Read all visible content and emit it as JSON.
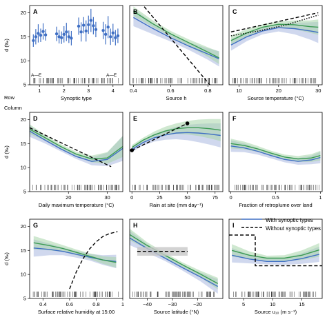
{
  "figure": {
    "ylabel": "d (‰)",
    "legend": {
      "entries": [
        {
          "label": "With synoptic types",
          "color": "#3f6fc4",
          "style": "solid"
        },
        {
          "label": "Without synoptic types",
          "color": "#000000",
          "style": "dashed"
        }
      ]
    },
    "colors": {
      "green": "#3a9a52",
      "blue": "#3f6fc4",
      "green_band": "#a7d6a9",
      "blue_band": "#aab8e0",
      "black": "#000000"
    }
  },
  "chart_data": [
    {
      "panel": "A",
      "type": "scatter",
      "xlabel": "Synoptic type",
      "xlim": [
        0.6,
        4.4
      ],
      "ylim": [
        5,
        21.5
      ],
      "xticks": [
        1,
        2,
        3,
        4
      ],
      "yticks": [
        5,
        10,
        15,
        20
      ],
      "row_label": "Row",
      "column_label": "Column",
      "annot_left": "A—E",
      "annot_right": "A—E",
      "groups": [
        {
          "type": 1,
          "points": [
            [
              0.75,
              14.2,
              1.3
            ],
            [
              0.85,
              15.0,
              1.6
            ],
            [
              0.95,
              15.7,
              1.9
            ],
            [
              1.05,
              15.3,
              1.4
            ],
            [
              1.15,
              16.1,
              1.7
            ],
            [
              1.25,
              15.4,
              1.2
            ]
          ]
        },
        {
          "type": 2,
          "points": [
            [
              1.7,
              15.6,
              1.5
            ],
            [
              1.8,
              15.0,
              1.4
            ],
            [
              1.9,
              14.8,
              1.3
            ],
            [
              2.0,
              15.5,
              1.7
            ],
            [
              2.1,
              16.0,
              1.9
            ],
            [
              2.2,
              15.0,
              1.3
            ],
            [
              2.3,
              14.7,
              1.5
            ]
          ]
        },
        {
          "type": 3,
          "points": [
            [
              2.6,
              17.2,
              1.8
            ],
            [
              2.7,
              16.0,
              2.0
            ],
            [
              2.8,
              17.4,
              1.7
            ],
            [
              2.9,
              16.2,
              2.2
            ],
            [
              3.0,
              17.5,
              1.9
            ],
            [
              3.1,
              18.4,
              2.4
            ],
            [
              3.2,
              17.3,
              1.8
            ],
            [
              3.3,
              16.5,
              1.6
            ]
          ]
        },
        {
          "type": 4,
          "points": [
            [
              3.6,
              16.3,
              1.8
            ],
            [
              3.7,
              15.5,
              2.1
            ],
            [
              3.8,
              17.0,
              2.3
            ],
            [
              3.9,
              15.0,
              1.7
            ],
            [
              4.0,
              15.8,
              1.9
            ],
            [
              4.1,
              14.8,
              1.6
            ],
            [
              4.2,
              15.2,
              1.5
            ]
          ]
        }
      ]
    },
    {
      "panel": "B",
      "type": "line",
      "xlabel": "Source h",
      "xlim": [
        0.38,
        0.88
      ],
      "ylim": [
        5,
        21.5
      ],
      "xticks": [
        0.4,
        0.6,
        0.8
      ],
      "x": [
        0.4,
        0.5,
        0.6,
        0.7,
        0.8,
        0.86
      ],
      "series": [
        {
          "name": "With synoptic types",
          "y": [
            19.0,
            16.8,
            14.8,
            13.0,
            11.4,
            10.4
          ],
          "band": [
            1.8,
            1.2,
            0.8,
            0.8,
            1.2,
            1.6
          ]
        },
        {
          "name": "Without synoptic types",
          "y": [
            20.3,
            17.8,
            15.6,
            13.7,
            11.8,
            10.6
          ],
          "band": [
            1.0,
            0.7,
            0.6,
            0.7,
            1.0,
            1.3
          ]
        },
        {
          "name": "Without synoptic types",
          "dashed": true,
          "x": [
            0.42,
            0.81
          ],
          "y": [
            23,
            5
          ]
        }
      ]
    },
    {
      "panel": "C",
      "type": "line",
      "xlabel": "Source temperature (°C)",
      "xlim": [
        7.5,
        31
      ],
      "ylim": [
        5,
        21.5
      ],
      "xticks": [
        10,
        20,
        30
      ],
      "x": [
        8,
        12,
        16,
        20,
        24,
        28,
        30
      ],
      "series": [
        {
          "name": "With synoptic types",
          "y": [
            13.3,
            15.0,
            16.2,
            16.9,
            16.7,
            16.2,
            15.9
          ],
          "band": [
            1.2,
            0.9,
            0.7,
            0.8,
            1.2,
            1.8,
            2.2
          ]
        },
        {
          "name": "Without synoptic types",
          "y": [
            14.2,
            15.8,
            17.0,
            17.6,
            17.5,
            17.1,
            17.0
          ],
          "band": [
            1.0,
            0.8,
            0.6,
            0.6,
            0.9,
            1.3,
            1.6
          ]
        },
        {
          "name": "Without synoptic types",
          "dashed": true,
          "x": [
            8,
            30
          ],
          "y": [
            16.0,
            20.0
          ]
        },
        {
          "dotted": true,
          "x": [
            8,
            15,
            22,
            30
          ],
          "y": [
            15.2,
            16.2,
            17.5,
            19.5
          ]
        }
      ]
    },
    {
      "panel": "D",
      "type": "line",
      "xlabel": "Daily maximum temperature (°C)",
      "xlim": [
        10,
        34
      ],
      "ylim": [
        5,
        21.5
      ],
      "xticks": [
        20,
        30
      ],
      "x": [
        10,
        14,
        18,
        22,
        26,
        30,
        34
      ],
      "series": [
        {
          "name": "With synoptic types",
          "y": [
            17.6,
            15.7,
            13.9,
            12.3,
            11.3,
            11.7,
            14.0
          ],
          "band": [
            1.2,
            0.7,
            0.5,
            0.5,
            0.8,
            1.4,
            2.6
          ]
        },
        {
          "name": "Without synoptic types",
          "y": [
            18.0,
            16.2,
            14.4,
            12.8,
            11.8,
            12.0,
            14.4
          ],
          "band": [
            1.0,
            0.6,
            0.5,
            0.5,
            0.7,
            1.2,
            2.2
          ]
        },
        {
          "name": "Without synoptic types",
          "dashed": true,
          "x": [
            10,
            31
          ],
          "y": [
            18.3,
            10.2
          ]
        }
      ]
    },
    {
      "panel": "E",
      "type": "line",
      "xlabel": "Rain at site (mm day⁻¹)",
      "xlim": [
        -2,
        82
      ],
      "ylim": [
        5,
        21.5
      ],
      "xticks": [
        0,
        25,
        50,
        75
      ],
      "x": [
        0,
        10,
        20,
        30,
        40,
        50,
        60,
        70,
        80
      ],
      "series": [
        {
          "name": "With synoptic types",
          "y": [
            13.8,
            15.2,
            16.2,
            16.8,
            17.2,
            17.3,
            17.2,
            17.0,
            16.7
          ],
          "band": [
            0.6,
            0.6,
            0.8,
            1.0,
            1.3,
            1.6,
            1.9,
            2.2,
            2.5
          ]
        },
        {
          "name": "Without synoptic types",
          "y": [
            14.2,
            15.7,
            16.8,
            17.6,
            18.1,
            18.3,
            18.3,
            18.1,
            17.8
          ],
          "band": [
            0.5,
            0.5,
            0.7,
            0.9,
            1.1,
            1.4,
            1.7,
            2.0,
            2.3
          ]
        },
        {
          "name": "Without synoptic types",
          "dashed": true,
          "x": [
            0,
            50
          ],
          "y": [
            13.6,
            19.2
          ],
          "endpoints": true
        }
      ]
    },
    {
      "panel": "F",
      "type": "line",
      "xlabel": "Fraction of retroplume over land",
      "xlim": [
        -0.02,
        1.02
      ],
      "ylim": [
        5,
        21.5
      ],
      "xticks": [
        0.0,
        0.5,
        1.0
      ],
      "x": [
        0,
        0.15,
        0.3,
        0.45,
        0.6,
        0.75,
        0.9,
        1.0
      ],
      "series": [
        {
          "name": "With synoptic types",
          "y": [
            14.5,
            14.1,
            13.4,
            12.5,
            11.7,
            11.3,
            11.6,
            12.1
          ],
          "band": [
            1.2,
            0.9,
            0.7,
            0.6,
            0.6,
            0.7,
            0.9,
            1.2
          ]
        },
        {
          "name": "Without synoptic types",
          "y": [
            15.0,
            14.6,
            13.9,
            13.0,
            12.2,
            11.8,
            12.0,
            12.5
          ],
          "band": [
            1.0,
            0.8,
            0.6,
            0.5,
            0.5,
            0.6,
            0.8,
            1.0
          ]
        }
      ]
    },
    {
      "panel": "G",
      "type": "line",
      "xlabel": "Surface relative humidity at 15:00",
      "xlim": [
        0.3,
        1.0
      ],
      "ylim": [
        5,
        21.5
      ],
      "xticks": [
        0.4,
        0.6,
        0.8,
        1.0
      ],
      "x": [
        0.33,
        0.45,
        0.55,
        0.65,
        0.75,
        0.85,
        0.95
      ],
      "series": [
        {
          "name": "With synoptic types",
          "y": [
            15.5,
            15.2,
            14.8,
            14.2,
            13.6,
            13.0,
            12.7
          ],
          "band": [
            1.8,
            1.2,
            0.8,
            0.7,
            0.7,
            1.0,
            1.4
          ]
        },
        {
          "name": "Without synoptic types",
          "y": [
            16.6,
            16.0,
            15.4,
            14.6,
            13.8,
            13.0,
            12.5
          ],
          "band": [
            1.4,
            1.0,
            0.7,
            0.6,
            0.6,
            0.8,
            1.1
          ]
        },
        {
          "name": "Without synoptic types",
          "dashed": true,
          "x": [
            0.6,
            0.65,
            0.7,
            0.75,
            0.8,
            0.85,
            0.9,
            0.96
          ],
          "y": [
            7.0,
            10.5,
            13.2,
            15.3,
            16.8,
            17.9,
            18.5,
            18.9
          ]
        }
      ]
    },
    {
      "panel": "H",
      "type": "line",
      "xlabel": "Source latitude (°N)",
      "xlim": [
        -47,
        -10
      ],
      "ylim": [
        5,
        21.5
      ],
      "xticks": [
        -40,
        -30,
        -20
      ],
      "x": [
        -47,
        -40,
        -33,
        -26,
        -19,
        -12
      ],
      "series": [
        {
          "name": "With synoptic types",
          "y": [
            17.6,
            15.4,
            13.4,
            11.4,
            9.5,
            7.5
          ],
          "band": [
            1.5,
            0.9,
            0.6,
            0.6,
            0.9,
            1.5
          ]
        },
        {
          "name": "Without synoptic types",
          "y": [
            18.3,
            16.0,
            14.0,
            12.0,
            10.1,
            8.1
          ],
          "band": [
            1.2,
            0.7,
            0.5,
            0.5,
            0.7,
            1.2
          ]
        },
        {
          "name": "Without synoptic types",
          "dashed": true,
          "x": [
            -44,
            -24
          ],
          "y": [
            14.8,
            14.8
          ],
          "grey_band": [
            13.9,
            15.7
          ]
        }
      ]
    },
    {
      "panel": "I",
      "type": "line",
      "xlabel": "Source u₁₀ (m s⁻¹)",
      "xlim": [
        2.5,
        18.5
      ],
      "ylim": [
        5,
        21.5
      ],
      "xticks": [
        5,
        10,
        15
      ],
      "x": [
        3,
        6,
        9,
        12,
        15,
        18
      ],
      "series": [
        {
          "name": "With synoptic types",
          "y": [
            14.0,
            13.2,
            12.7,
            12.7,
            13.3,
            14.2
          ],
          "band": [
            1.5,
            0.9,
            0.6,
            0.7,
            1.1,
            1.6
          ]
        },
        {
          "name": "Without synoptic types",
          "y": [
            15.0,
            14.0,
            13.4,
            13.4,
            14.0,
            15.1
          ],
          "band": [
            1.3,
            0.8,
            0.5,
            0.6,
            1.0,
            1.4
          ]
        },
        {
          "name": "Without synoptic types",
          "dashed": true,
          "step": true,
          "x": [
            2.5,
            7,
            7,
            18.5
          ],
          "y": [
            18.2,
            18.2,
            11.8,
            11.8
          ]
        }
      ]
    }
  ]
}
